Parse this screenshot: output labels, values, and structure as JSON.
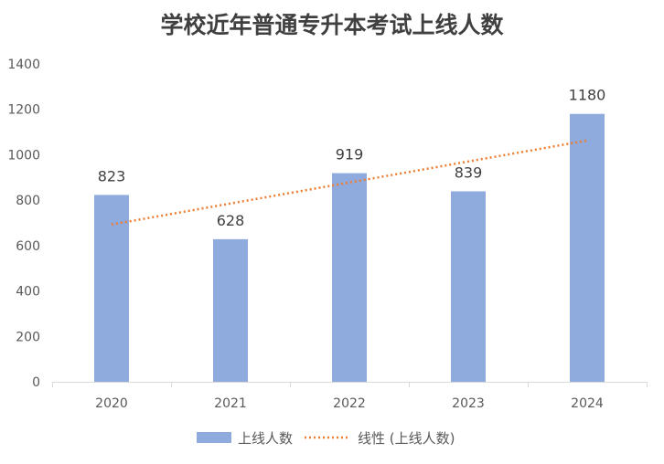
{
  "chart_data": {
    "type": "bar",
    "title": "学校近年普通专升本考试上线人数",
    "categories": [
      "2020",
      "2021",
      "2022",
      "2023",
      "2024"
    ],
    "series": [
      {
        "name": "上线人数",
        "values": [
          823,
          628,
          919,
          839,
          1180
        ]
      }
    ],
    "trendline": {
      "name": "线性 (上线人数)",
      "type": "linear"
    },
    "ylim": [
      0,
      1400
    ],
    "yticks": [
      0,
      200,
      400,
      600,
      800,
      1000,
      1200,
      1400
    ],
    "xlabel": "",
    "ylabel": "",
    "legend": "bottom",
    "colors": {
      "bar": "#8FAADC",
      "trend": "#ED7D31"
    }
  }
}
